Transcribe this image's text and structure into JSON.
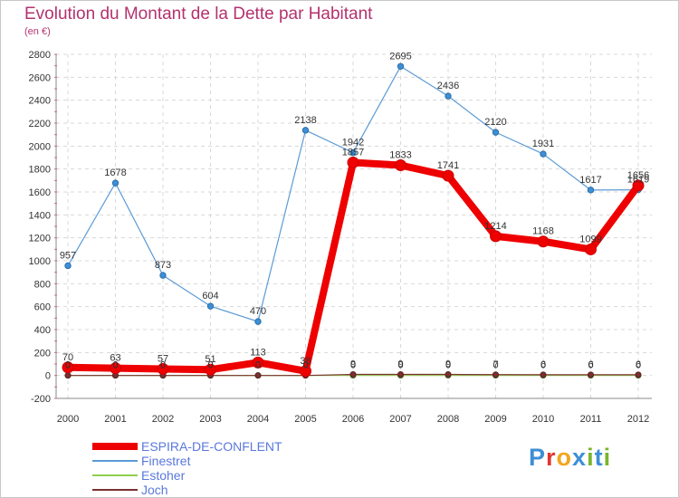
{
  "header": {
    "title": "Evolution du Montant de la Dette par Habitant",
    "unit": "(en €)"
  },
  "logo": {
    "text": "Proxiti",
    "letters": [
      {
        "ch": "P",
        "color": "#3d8fd6"
      },
      {
        "ch": "r",
        "color": "#e0362e"
      },
      {
        "ch": "o",
        "color": "#f2a61e"
      },
      {
        "ch": "x",
        "color": "#3d8fd6"
      },
      {
        "ch": "i",
        "color": "#7ab52e"
      },
      {
        "ch": "t",
        "color": "#3d8fd6"
      },
      {
        "ch": "i",
        "color": "#7ab52e"
      }
    ]
  },
  "chart_data": {
    "type": "line",
    "title": "Evolution du Montant de la Dette par Habitant",
    "ylabel": "(en €)",
    "xlabel": "",
    "ylim": [
      -200,
      2800
    ],
    "y_ticks": [
      -200,
      0,
      200,
      400,
      600,
      800,
      1000,
      1200,
      1400,
      1600,
      1800,
      2000,
      2200,
      2400,
      2600,
      2800
    ],
    "categories": [
      "2000",
      "2001",
      "2002",
      "2003",
      "2004",
      "2005",
      "2006",
      "2007",
      "2008",
      "2009",
      "2010",
      "2011",
      "2012"
    ],
    "grid": true,
    "legend_position": "bottom-left",
    "series": [
      {
        "name": "ESPIRA-DE-CONFLENT",
        "color": "#ee0000",
        "emphasis": true,
        "values": [
          70,
          63,
          57,
          51,
          113,
          38,
          1857,
          1833,
          1741,
          1214,
          1168,
          1099,
          1656
        ]
      },
      {
        "name": "Finestret",
        "color": "#5b9bd5",
        "values": [
          957,
          1678,
          873,
          604,
          470,
          2138,
          1942,
          2695,
          2436,
          2120,
          1931,
          1617,
          1619
        ]
      },
      {
        "name": "Estoher",
        "color": "#90d050",
        "values": [
          0,
          0,
          0,
          0,
          0,
          0,
          0,
          0,
          0,
          0,
          0,
          0,
          0
        ]
      },
      {
        "name": "Joch",
        "color": "#7a3030",
        "values": [
          0,
          0,
          0,
          0,
          0,
          0,
          9,
          9,
          9,
          7,
          6,
          6,
          6
        ]
      }
    ]
  }
}
